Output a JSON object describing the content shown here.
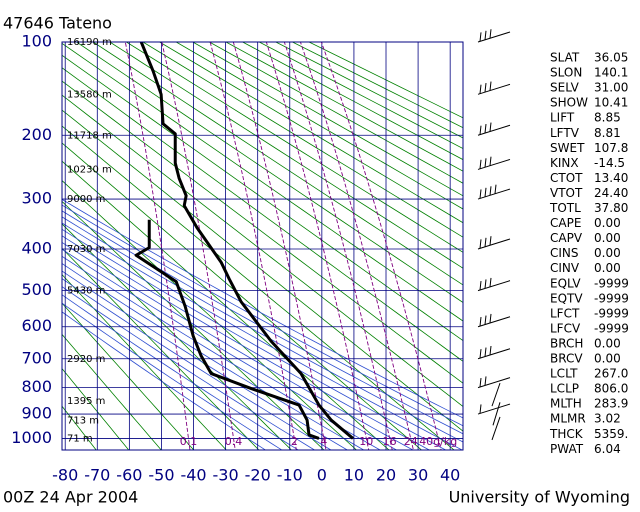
{
  "chart_data": {
    "type": "sounding",
    "title": "47646  Tateno",
    "footer_left": "00Z 24 Apr 2004",
    "footer_right": "University of Wyoming",
    "xlim": [
      -81,
      44
    ],
    "xticks": [
      -80,
      -70,
      -60,
      -50,
      -40,
      -30,
      -20,
      -10,
      0,
      10,
      20,
      30,
      40
    ],
    "ylim": [
      100,
      1050
    ],
    "yticks": [
      100,
      200,
      300,
      400,
      500,
      600,
      700,
      800,
      900,
      1000
    ],
    "grid": true,
    "series": [
      {
        "color": "#000000",
        "pressure": [
          1000,
          924,
          865,
          750,
          644,
          529,
          470,
          430,
          355,
          312,
          294,
          264,
          240,
          198,
          185,
          150,
          126,
          100
        ],
        "values": [
          9.7,
          2.9,
          -0.9,
          -6.5,
          -15.8,
          -25.2,
          -28.9,
          -31.4,
          -38.9,
          -42.9,
          -42.3,
          -44.5,
          -45.7,
          -45.7,
          -49.5,
          -50.1,
          -52.6,
          -56.3
        ]
      },
      {
        "color": "#000000",
        "pressure": [
          1000,
          985,
          924,
          865,
          803,
          750,
          691,
          628,
          542,
          477,
          414,
          397,
          339
        ],
        "values": [
          -0.9,
          -4.0,
          -4.6,
          -7.1,
          -22.1,
          -34.5,
          -37.6,
          -40.1,
          -42.6,
          -45.4,
          -57.9,
          -53.8,
          -53.8
        ]
      }
    ],
    "height_labels": [
      {
        "pressure": 100,
        "label": "16190 m"
      },
      {
        "pressure": 150,
        "label": "13580 m"
      },
      {
        "pressure": 200,
        "label": "11718 m"
      },
      {
        "pressure": 250,
        "label": "10230 m"
      },
      {
        "pressure": 300,
        "label": "9000 m"
      },
      {
        "pressure": 400,
        "label": "7030 m"
      },
      {
        "pressure": 500,
        "label": "5430 m"
      },
      {
        "pressure": 700,
        "label": "2920 m"
      },
      {
        "pressure": 850,
        "label": "1395 m"
      },
      {
        "pressure": 925,
        "label": "713 m"
      },
      {
        "pressure": 1000,
        "label": "71 m"
      }
    ],
    "mixing_ratios": [
      0.1,
      0.4,
      2,
      4,
      10,
      16,
      24,
      {
        "value": 40,
        "label": "40g/kg"
      }
    ],
    "indices": [
      [
        "SLAT",
        "36.05"
      ],
      [
        "SLON",
        "140.1"
      ],
      [
        "SELV",
        "31.00"
      ],
      [
        "SHOW",
        "10.41"
      ],
      [
        "LIFT",
        "8.85"
      ],
      [
        "LFTV",
        "8.81"
      ],
      [
        "SWET",
        "107.8"
      ],
      [
        "KINX",
        "-14.5"
      ],
      [
        "CTOT",
        "13.40"
      ],
      [
        "VTOT",
        "24.40"
      ],
      [
        "TOTL",
        "37.80"
      ],
      [
        "CAPE",
        "0.00"
      ],
      [
        "CAPV",
        "0.00"
      ],
      [
        "CINS",
        "0.00"
      ],
      [
        "CINV",
        "0.00"
      ],
      [
        "EQLV",
        "-9999"
      ],
      [
        "EQTV",
        "-9999"
      ],
      [
        "LFCT",
        "-9999"
      ],
      [
        "LFCV",
        "-9999"
      ],
      [
        "BRCH",
        "0.00"
      ],
      [
        "BRCV",
        "0.00"
      ],
      [
        "LCLT",
        "267.0"
      ],
      [
        "LCLP",
        "806.0"
      ],
      [
        "MLTH",
        "283.9"
      ],
      [
        "MLMR",
        "3.02"
      ],
      [
        "THCK",
        "5359."
      ],
      [
        "PWAT",
        "6.04"
      ]
    ]
  }
}
